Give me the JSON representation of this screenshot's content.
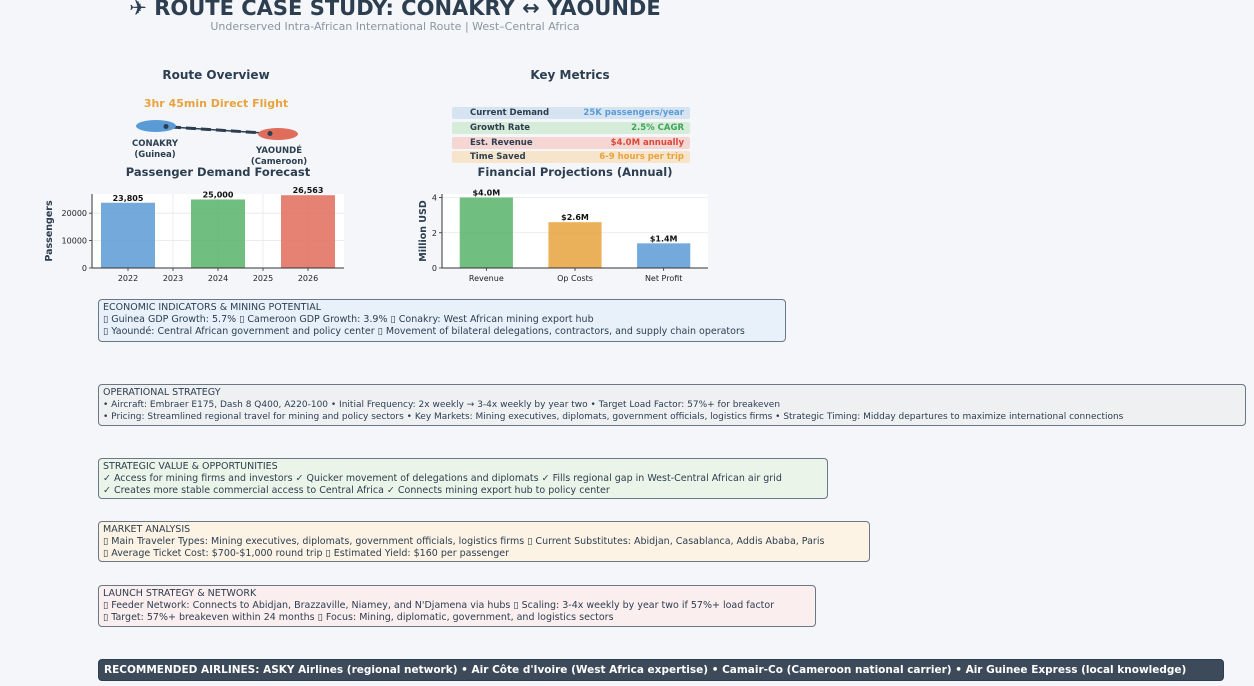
{
  "header": {
    "title": "✈ ROUTE CASE STUDY: CONAKRY ↔ YAOUNDÉ",
    "subtitle": "Underserved Intra-African International Route | West–Central Africa"
  },
  "route_overview": {
    "title": "Route Overview",
    "duration": "3hr 45min Direct Flight",
    "origin_name": "CONAKRY",
    "origin_country": "(Guinea)",
    "dest_name": "YAOUNDÉ",
    "dest_country": "(Cameroon)",
    "origin_color": "#5b9bd5",
    "dest_color": "#e06c5b"
  },
  "key_metrics": {
    "title": "Key Metrics",
    "items": [
      {
        "label": "Current Demand",
        "value": "25K passengers/year",
        "bg": "#d6e4f2",
        "color": "#5b9bd5"
      },
      {
        "label": "Growth Rate",
        "value": "2.5% CAGR",
        "bg": "#d5ecd8",
        "color": "#3fa45a"
      },
      {
        "label": "Est. Revenue",
        "value": "$4.0M annually",
        "bg": "#f5d6d3",
        "color": "#d9483b"
      },
      {
        "label": "Time Saved",
        "value": "6-9 hours per trip",
        "bg": "#f7e5cb",
        "color": "#e8a33d"
      }
    ]
  },
  "chart_data": [
    {
      "type": "bar",
      "title": "Passenger Demand Forecast",
      "ylabel": "Passengers",
      "xlabel": "",
      "x": [
        2022,
        2024,
        2026
      ],
      "values": [
        23805,
        25000,
        26563
      ],
      "value_labels": [
        "23,805",
        "25,000",
        "26,563"
      ],
      "colors": [
        "#5b9bd5",
        "#57b36a",
        "#e06c5b"
      ],
      "xticks": [
        "2022",
        "2023",
        "2024",
        "2025",
        "2026"
      ],
      "xlim": [
        2021.2,
        2026.8
      ],
      "ylim": [
        0,
        27000
      ],
      "yticks": [
        0,
        10000,
        20000
      ],
      "ytick_labels": [
        "0",
        "10000",
        "20000"
      ],
      "grid": true
    },
    {
      "type": "bar",
      "title": "Financial Projections (Annual)",
      "ylabel": "Million USD",
      "xlabel": "",
      "categories": [
        "Revenue",
        "Op Costs",
        "Net Profit"
      ],
      "values": [
        4.0,
        2.6,
        1.4
      ],
      "value_labels": [
        "$4.0M",
        "$2.6M",
        "$1.4M"
      ],
      "colors": [
        "#57b36a",
        "#e8a33d",
        "#5b9bd5"
      ],
      "ylim": [
        0,
        4.2
      ],
      "yticks": [
        0,
        2,
        4
      ],
      "ytick_labels": [
        "0",
        "2",
        "4"
      ],
      "grid": true
    }
  ],
  "boxes": {
    "economic": {
      "title": "ECONOMIC INDICATORS & MINING POTENTIAL",
      "line1": "▯ Guinea GDP Growth: 5.7%  ▯ Cameroon GDP Growth: 3.9%  ▯ Conakry: West African mining export hub",
      "line2": "▯ Yaoundé: Central African government and policy center  ▯ Movement of bilateral delegations, contractors, and supply chain operators",
      "bg": "#e8f1fa"
    },
    "operational": {
      "title": "OPERATIONAL STRATEGY",
      "line1": "• Aircraft: Embraer E175, Dash 8 Q400, A220-100  • Initial Frequency: 2x weekly → 3-4x weekly by year two  • Target Load Factor: 57%+ for breakeven",
      "line2": "• Pricing: Streamlined regional travel for mining and policy sectors  • Key Markets: Mining executives, diplomats, government officials, logistics firms  • Strategic Timing: Midday departures to maximize international connections",
      "bg": "#eef0f2"
    },
    "strategic": {
      "title": "STRATEGIC VALUE & OPPORTUNITIES",
      "line1": "✓ Access for mining firms and investors  ✓ Quicker movement of delegations and diplomats  ✓ Fills regional gap in West-Central African air grid",
      "line2": "✓ Creates more stable commercial access to Central Africa  ✓ Connects mining export hub to policy center",
      "bg": "#ebf4e8"
    },
    "market": {
      "title": "MARKET ANALYSIS",
      "line1": "▯ Main Traveler Types: Mining executives, diplomats, government officials, logistics firms  ▯ Current Substitutes: Abidjan, Casablanca, Addis Ababa, Paris",
      "line2": "▯ Average Ticket Cost: $700-$1,000 round trip  ▯ Estimated Yield: $160 per passenger",
      "bg": "#fcf3e5"
    },
    "launch": {
      "title": "LAUNCH STRATEGY & NETWORK",
      "line1": "▯ Feeder Network: Connects to Abidjan, Brazzaville, Niamey, and N'Djamena via hubs  ▯ Scaling: 3-4x weekly by year two if 57%+ load factor",
      "line2": "▯ Target: 57%+ breakeven within 24 months  ▯ Focus: Mining, diplomatic, government, and logistics sectors",
      "bg": "#fbeeee"
    }
  },
  "recommended": "RECOMMENDED AIRLINES: ASKY Airlines (regional network) • Air Côte d'Ivoire (West Africa expertise) • Camair-Co (Cameroon national carrier) • Air Guinee Express (local knowledge)"
}
